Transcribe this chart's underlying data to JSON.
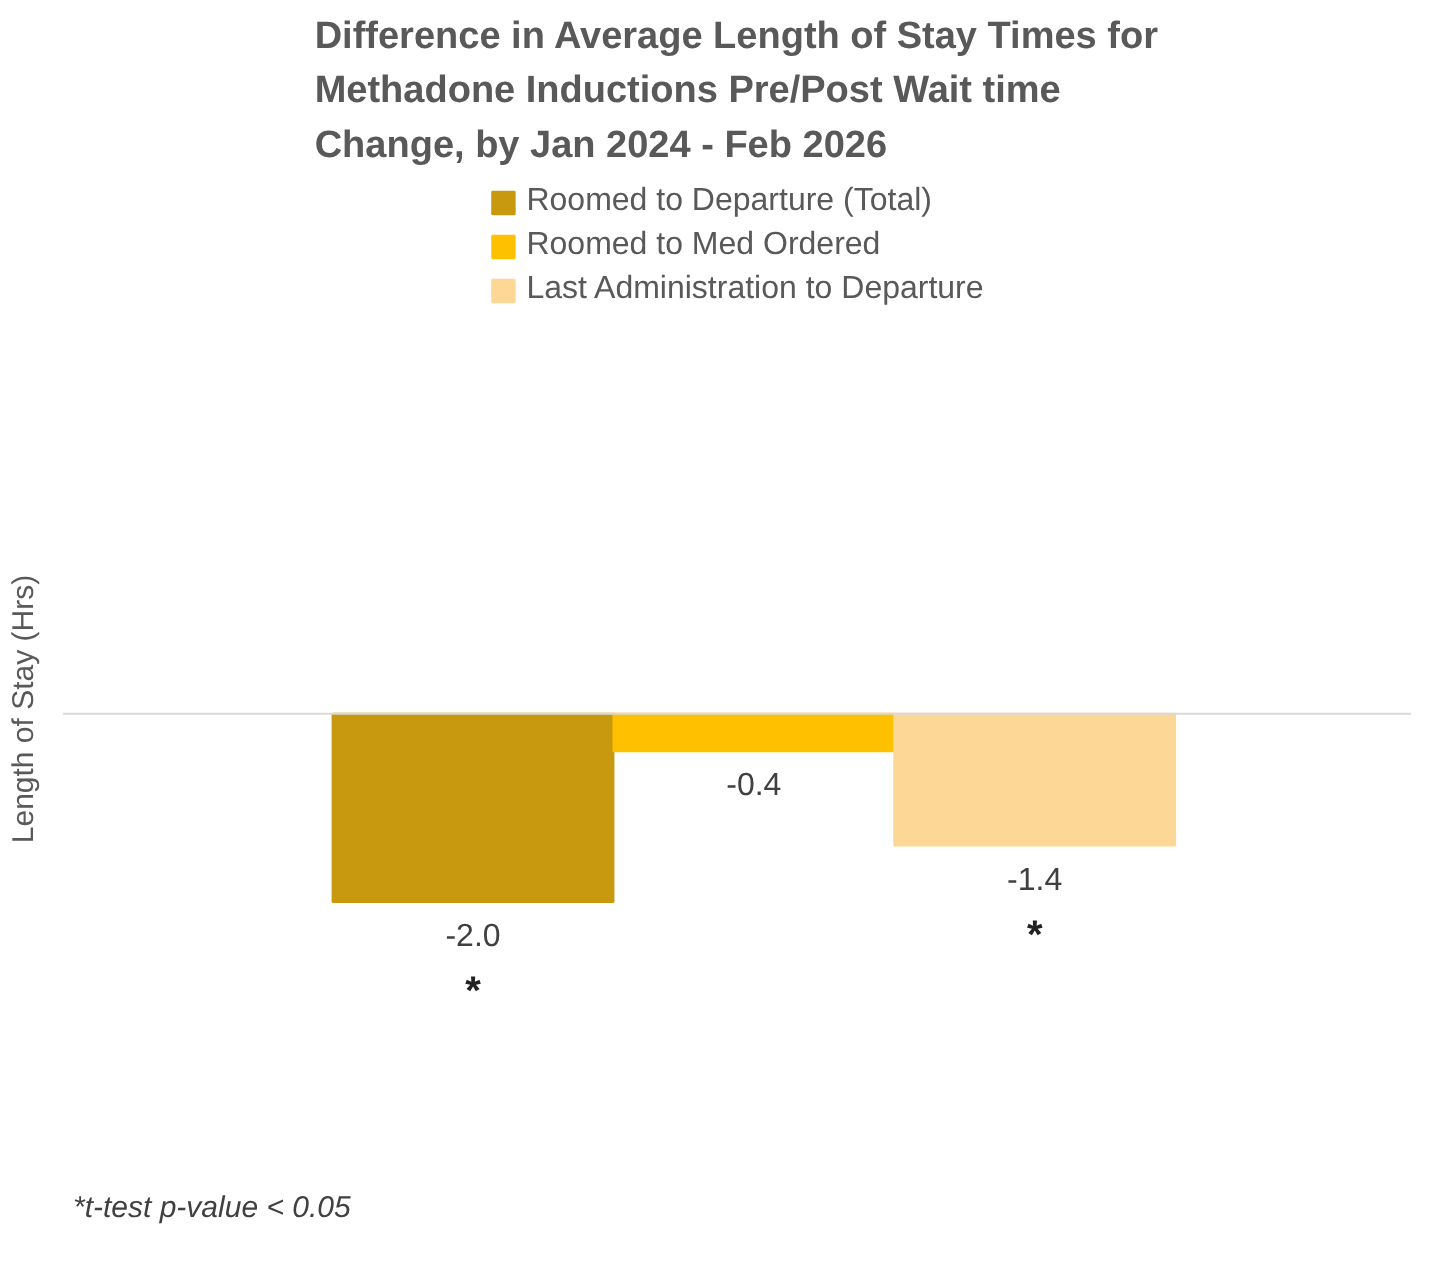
{
  "chart_data": {
    "type": "bar",
    "title": "Difference in Average Length of Stay Times for Methadone Inductions Pre/Post Wait time Change, by  Jan 2024 - Feb 2026",
    "ylabel": "Length of Stay (Hrs)",
    "categories": [
      null
    ],
    "series": [
      {
        "name": "Roomed to Departure (Total)",
        "color": "#c8980e",
        "values": [
          -2.0
        ],
        "value_labels": [
          "-2.0"
        ]
      },
      {
        "name": "Roomed to Med Ordered",
        "color": "#ffc000",
        "values": [
          -0.4
        ],
        "value_labels": [
          "-0.4"
        ]
      },
      {
        "name": "Last Administration to Departure",
        "color": "#fdd795",
        "values": [
          -1.4
        ],
        "value_labels": [
          "-1.4"
        ]
      }
    ],
    "tick_labels": false,
    "legend": "top",
    "annotations": [
      "*",
      "*",
      "*t-test p-value < 0.05"
    ]
  }
}
